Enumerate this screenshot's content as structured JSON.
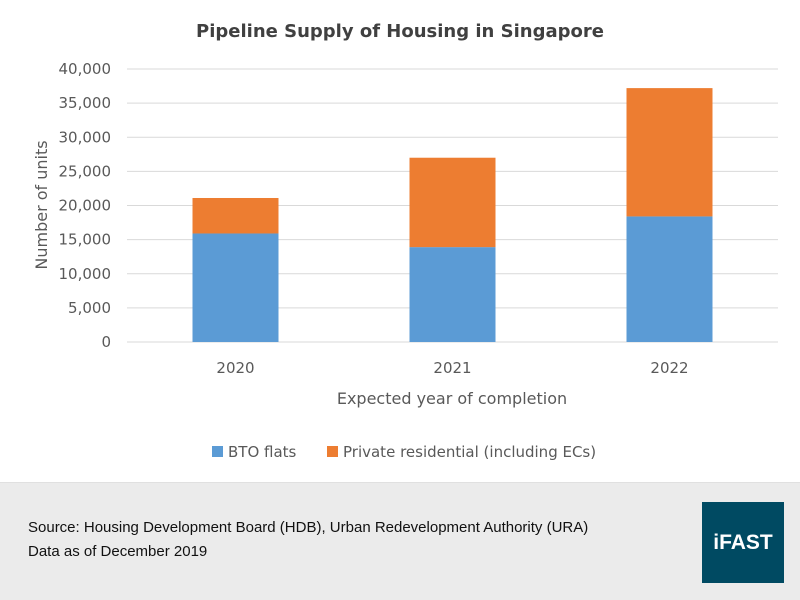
{
  "chart_data": {
    "type": "bar",
    "stacked": true,
    "title": "Pipeline Supply of Housing in Singapore",
    "xlabel": "Expected year of completion",
    "ylabel": "Number of units",
    "categories": [
      "2020",
      "2021",
      "2022"
    ],
    "series": [
      {
        "name": "BTO flats",
        "color": "#5b9bd5",
        "values": [
          15900,
          13900,
          18400
        ]
      },
      {
        "name": "Private residential (including ECs)",
        "color": "#ed7d31",
        "values": [
          5200,
          13100,
          18800
        ]
      }
    ],
    "ylim": [
      0,
      40000
    ],
    "yticks": [
      0,
      5000,
      10000,
      15000,
      20000,
      25000,
      30000,
      35000,
      40000
    ],
    "ytick_labels": [
      "0",
      "5,000",
      "10,000",
      "15,000",
      "20,000",
      "25,000",
      "30,000",
      "35,000",
      "40,000"
    ],
    "grid": true,
    "legend_position": "bottom"
  },
  "footer": {
    "source_line": "Source: Housing Development Board (HDB), Urban Redevelopment Authority (URA)",
    "date_line": "Data as of December 2019",
    "logo_text": "iFAST",
    "logo_color": "#004a62"
  }
}
